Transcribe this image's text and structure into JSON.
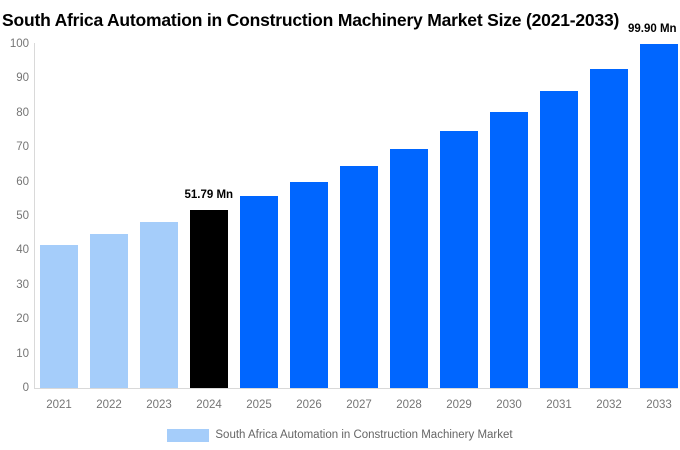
{
  "chart_data": {
    "type": "bar",
    "title": "South Africa Automation in Construction Machinery Market Size (2021-2033)",
    "categories": [
      "2021",
      "2022",
      "2023",
      "2024",
      "2025",
      "2026",
      "2027",
      "2028",
      "2029",
      "2030",
      "2031",
      "2032",
      "2033"
    ],
    "series": [
      {
        "name": "South Africa Automation in Construction Machinery Market",
        "values": [
          41.61,
          44.77,
          48.15,
          51.79,
          55.71,
          59.93,
          64.47,
          69.35,
          74.6,
          80.25,
          86.33,
          92.87,
          99.9
        ]
      }
    ],
    "unit": "Mn",
    "bar_colors": [
      "#a5cdfa",
      "#a5cdfa",
      "#a5cdfa",
      "#000000",
      "#0066ff",
      "#0066ff",
      "#0066ff",
      "#0066ff",
      "#0066ff",
      "#0066ff",
      "#0066ff",
      "#0066ff",
      "#0066ff"
    ],
    "annotations": [
      {
        "category": "2024",
        "text": "51.79 Mn"
      },
      {
        "category": "2033",
        "text": "99.90 Mn"
      }
    ],
    "xlabel": "",
    "ylabel": "",
    "ylim": [
      0,
      100
    ],
    "yticks": [
      0,
      10,
      20,
      30,
      40,
      50,
      60,
      70,
      80,
      90,
      100
    ],
    "grid": false,
    "legend_position": "bottom"
  },
  "legend": {
    "label": "South Africa Automation in Construction Machinery Market",
    "swatch_color": "#a5cdfa"
  },
  "colors": {
    "historical_bar": "#a5cdfa",
    "highlight_bar": "#000000",
    "forecast_bar": "#0066ff",
    "axis_line": "#d9d9d9",
    "tick_text": "#757575",
    "annotation_text": "#000000",
    "legend_text": "#666666"
  }
}
